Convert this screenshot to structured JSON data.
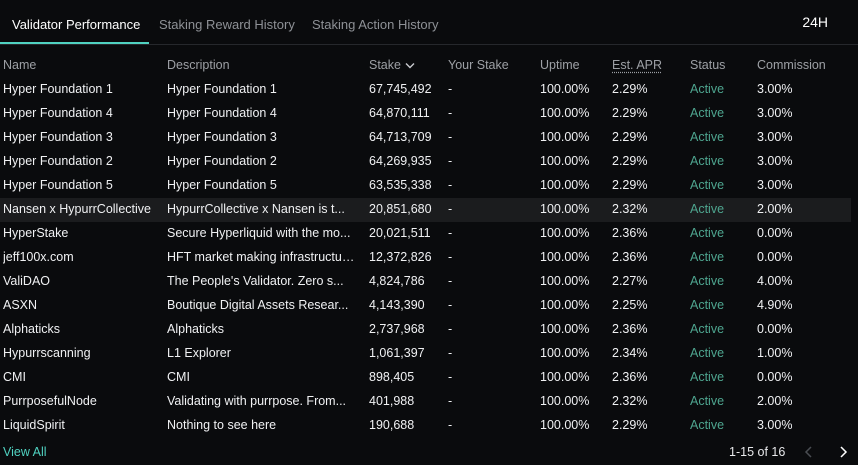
{
  "tabs": [
    {
      "label": "Validator Performance"
    },
    {
      "label": "Staking Reward History"
    },
    {
      "label": "Staking Action History"
    }
  ],
  "period": "24H",
  "columns": {
    "name": "Name",
    "description": "Description",
    "stake": "Stake",
    "your_stake": "Your Stake",
    "uptime": "Uptime",
    "apr": "Est. APR",
    "status": "Status",
    "commission": "Commission"
  },
  "rows": [
    {
      "name": "Hyper Foundation 1",
      "description": "Hyper Foundation 1",
      "stake": "67,745,492",
      "your_stake": "-",
      "uptime": "100.00%",
      "apr": "2.29%",
      "status": "Active",
      "commission": "3.00%"
    },
    {
      "name": "Hyper Foundation 4",
      "description": "Hyper Foundation 4",
      "stake": "64,870,111",
      "your_stake": "-",
      "uptime": "100.00%",
      "apr": "2.29%",
      "status": "Active",
      "commission": "3.00%"
    },
    {
      "name": "Hyper Foundation 3",
      "description": "Hyper Foundation 3",
      "stake": "64,713,709",
      "your_stake": "-",
      "uptime": "100.00%",
      "apr": "2.29%",
      "status": "Active",
      "commission": "3.00%"
    },
    {
      "name": "Hyper Foundation 2",
      "description": "Hyper Foundation 2",
      "stake": "64,269,935",
      "your_stake": "-",
      "uptime": "100.00%",
      "apr": "2.29%",
      "status": "Active",
      "commission": "3.00%"
    },
    {
      "name": "Hyper Foundation 5",
      "description": "Hyper Foundation 5",
      "stake": "63,535,338",
      "your_stake": "-",
      "uptime": "100.00%",
      "apr": "2.29%",
      "status": "Active",
      "commission": "3.00%"
    },
    {
      "name": "Nansen x HypurrCollective",
      "description": "HypurrCollective x Nansen is t...",
      "stake": "20,851,680",
      "your_stake": "-",
      "uptime": "100.00%",
      "apr": "2.32%",
      "status": "Active",
      "commission": "2.00%"
    },
    {
      "name": "HyperStake",
      "description": "Secure Hyperliquid with the mo...",
      "stake": "20,021,511",
      "your_stake": "-",
      "uptime": "100.00%",
      "apr": "2.36%",
      "status": "Active",
      "commission": "0.00%"
    },
    {
      "name": "jeff100x.com",
      "description": "HFT market making infrastructur...",
      "stake": "12,372,826",
      "your_stake": "-",
      "uptime": "100.00%",
      "apr": "2.36%",
      "status": "Active",
      "commission": "0.00%"
    },
    {
      "name": "ValiDAO",
      "description": "The People's Validator. Zero s...",
      "stake": "4,824,786",
      "your_stake": "-",
      "uptime": "100.00%",
      "apr": "2.27%",
      "status": "Active",
      "commission": "4.00%"
    },
    {
      "name": "ASXN",
      "description": "Boutique Digital Assets Resear...",
      "stake": "4,143,390",
      "your_stake": "-",
      "uptime": "100.00%",
      "apr": "2.25%",
      "status": "Active",
      "commission": "4.90%"
    },
    {
      "name": "Alphaticks",
      "description": "Alphaticks",
      "stake": "2,737,968",
      "your_stake": "-",
      "uptime": "100.00%",
      "apr": "2.36%",
      "status": "Active",
      "commission": "0.00%"
    },
    {
      "name": "Hypurrscanning",
      "description": "L1 Explorer",
      "stake": "1,061,397",
      "your_stake": "-",
      "uptime": "100.00%",
      "apr": "2.34%",
      "status": "Active",
      "commission": "1.00%"
    },
    {
      "name": "CMI",
      "description": "CMI",
      "stake": "898,405",
      "your_stake": "-",
      "uptime": "100.00%",
      "apr": "2.36%",
      "status": "Active",
      "commission": "0.00%"
    },
    {
      "name": "PurrposefulNode",
      "description": "Validating with purrpose. From...",
      "stake": "401,988",
      "your_stake": "-",
      "uptime": "100.00%",
      "apr": "2.32%",
      "status": "Active",
      "commission": "2.00%"
    },
    {
      "name": "LiquidSpirit",
      "description": "Nothing to see here",
      "stake": "190,688",
      "your_stake": "-",
      "uptime": "100.00%",
      "apr": "2.29%",
      "status": "Active",
      "commission": "3.00%"
    }
  ],
  "footer": {
    "view_all": "View All",
    "pagination": "1-15 of 16"
  },
  "colors": {
    "accent": "#50d2c1",
    "status_active": "#4ea58f",
    "background": "#0a0b0d",
    "row_highlight": "#1b1c1e"
  }
}
